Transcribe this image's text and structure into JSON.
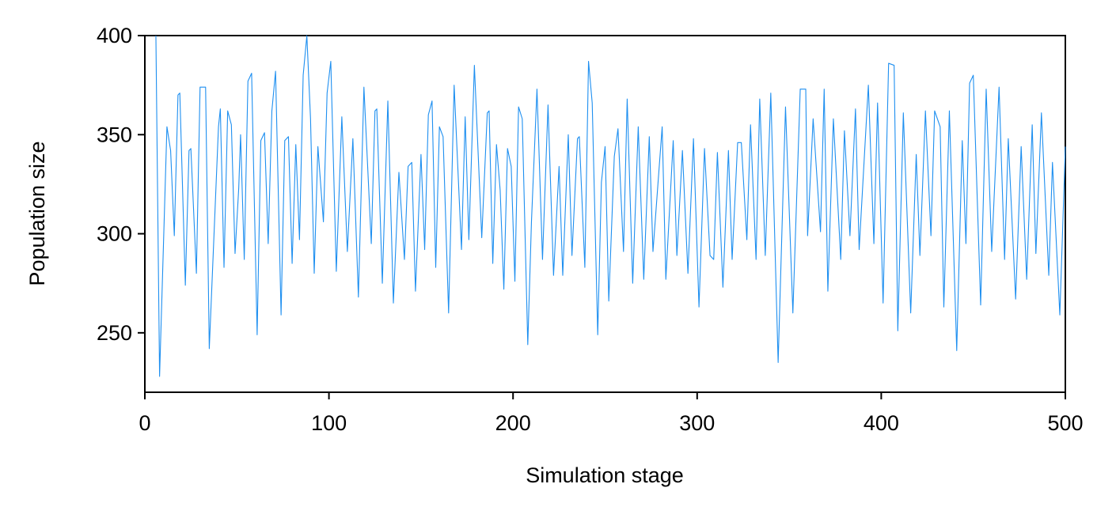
{
  "chart_data": {
    "type": "line",
    "xlabel": "Simulation stage",
    "ylabel": "Population size",
    "xlim": [
      0,
      500
    ],
    "xticks": [
      0,
      100,
      200,
      300,
      400,
      500
    ],
    "ylim": [
      220,
      400
    ],
    "yticks": [
      250,
      300,
      350,
      400
    ],
    "grid": false,
    "series": [
      {
        "color": "#1e8ff0",
        "x": [
          6,
          8,
          12,
          14,
          16,
          18,
          19,
          22,
          24,
          25,
          28,
          30,
          33,
          35,
          40,
          41,
          43,
          45,
          47,
          49,
          51,
          52,
          54,
          56,
          58,
          61,
          63,
          65,
          67,
          69,
          71,
          74,
          76,
          78,
          80,
          82,
          84,
          86,
          88,
          90,
          92,
          94,
          97,
          99,
          101,
          104,
          107,
          110,
          113,
          116,
          119,
          123,
          125,
          126,
          129,
          132,
          135,
          138,
          141,
          143,
          145,
          147,
          150,
          152,
          154,
          156,
          158,
          160,
          162,
          165,
          168,
          172,
          174,
          176,
          179,
          183,
          186,
          187,
          189,
          191,
          193,
          195,
          197,
          199,
          201,
          203,
          205,
          208,
          210,
          213,
          216,
          219,
          222,
          225,
          227,
          230,
          232,
          235,
          236,
          239,
          241,
          243,
          246,
          248,
          250,
          252,
          255,
          257,
          260,
          262,
          265,
          268,
          271,
          274,
          276,
          281,
          283,
          287,
          289,
          292,
          295,
          298,
          301,
          304,
          307,
          309,
          311,
          314,
          317,
          319,
          322,
          324,
          327,
          329,
          332,
          334,
          337,
          340,
          344,
          348,
          352,
          356,
          359,
          360,
          363,
          367,
          369,
          371,
          374,
          378,
          380,
          383,
          386,
          388,
          393,
          396,
          398,
          401,
          404,
          407,
          409,
          412,
          416,
          419,
          421,
          424,
          427,
          429,
          432,
          434,
          437,
          441,
          444,
          446,
          448,
          450,
          454,
          457,
          460,
          464,
          467,
          469,
          473,
          476,
          479,
          482,
          484,
          487,
          491,
          493,
          497,
          500
        ],
        "values": [
          400,
          228,
          354,
          342,
          299,
          370,
          371,
          274,
          342,
          343,
          280,
          374,
          374,
          242,
          354,
          363,
          283,
          362,
          355,
          290,
          323,
          350,
          287,
          377,
          381,
          249,
          347,
          351,
          295,
          362,
          382,
          259,
          347,
          349,
          285,
          345,
          297,
          380,
          400,
          358,
          280,
          344,
          306,
          371,
          387,
          281,
          359,
          291,
          348,
          268,
          374,
          295,
          362,
          363,
          275,
          367,
          265,
          331,
          287,
          334,
          336,
          271,
          340,
          292,
          360,
          367,
          283,
          354,
          349,
          260,
          375,
          292,
          359,
          297,
          385,
          298,
          361,
          362,
          285,
          345,
          322,
          272,
          343,
          334,
          276,
          364,
          358,
          244,
          306,
          373,
          287,
          365,
          279,
          334,
          279,
          350,
          289,
          348,
          349,
          283,
          387,
          366,
          249,
          326,
          344,
          266,
          339,
          353,
          291,
          368,
          275,
          354,
          277,
          349,
          291,
          354,
          277,
          347,
          289,
          342,
          280,
          348,
          263,
          343,
          289,
          287,
          341,
          273,
          342,
          287,
          346,
          346,
          297,
          355,
          287,
          368,
          289,
          371,
          235,
          364,
          260,
          373,
          373,
          299,
          358,
          301,
          373,
          271,
          358,
          287,
          352,
          299,
          363,
          292,
          375,
          295,
          366,
          265,
          386,
          385,
          251,
          361,
          260,
          340,
          289,
          362,
          299,
          362,
          354,
          263,
          362,
          241,
          347,
          295,
          376,
          380,
          264,
          373,
          291,
          374,
          287,
          348,
          267,
          344,
          277,
          355,
          290,
          361,
          279,
          336,
          259,
          344
        ]
      }
    ]
  }
}
